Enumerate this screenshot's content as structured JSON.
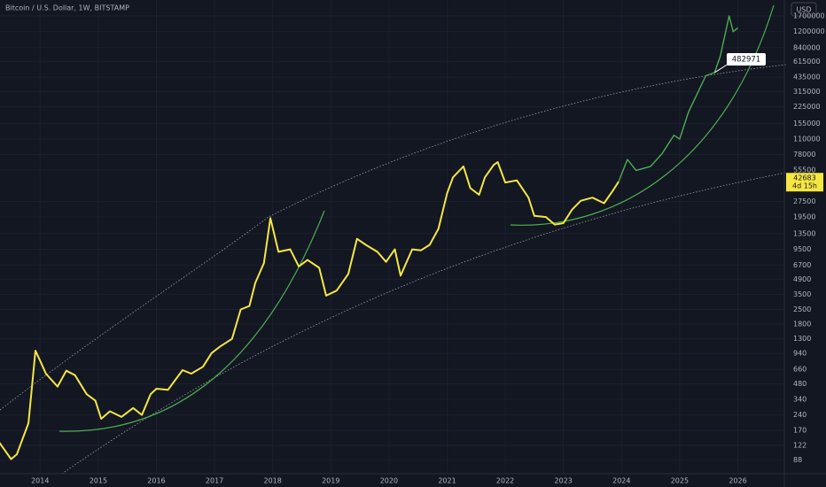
{
  "chart_data": {
    "type": "line",
    "title": "Bitcoin / U.S. Dollar, 1W, BITSTAMP",
    "currency": "USD",
    "log_scale": true,
    "grid": true,
    "xlim": [
      2013.31,
      2026.8
    ],
    "xticks": [
      2014,
      2015,
      2016,
      2017,
      2018,
      2019,
      2020,
      2021,
      2022,
      2023,
      2024,
      2025,
      2026
    ],
    "ylim": [
      65,
      2420000
    ],
    "yticks": [
      88,
      122,
      170,
      240,
      340,
      480,
      660,
      940,
      1300,
      1800,
      2500,
      3500,
      4900,
      6700,
      9500,
      13500,
      19500,
      27500,
      55500,
      78000,
      110000,
      155000,
      225000,
      315000,
      435000,
      615000,
      840000,
      1200000,
      1700000
    ],
    "last_price": 42683,
    "countdown": "4d 15h",
    "target_label": 482971,
    "series": [
      {
        "color": "#f5e642",
        "x": [
          2013.3,
          2013.5,
          2013.6,
          2013.8,
          2013.92,
          2014.0,
          2014.1,
          2014.3,
          2014.45,
          2014.6,
          2014.8,
          2014.95,
          2015.05,
          2015.2,
          2015.4,
          2015.6,
          2015.75,
          2015.9,
          2016.0,
          2016.2,
          2016.45,
          2016.6,
          2016.8,
          2016.95,
          2017.1,
          2017.3,
          2017.45,
          2017.6,
          2017.7,
          2017.85,
          2017.96,
          2018.1,
          2018.3,
          2018.45,
          2018.6,
          2018.8,
          2018.92,
          2019.1,
          2019.3,
          2019.45,
          2019.6,
          2019.8,
          2019.95,
          2020.1,
          2020.2,
          2020.4,
          2020.55,
          2020.7,
          2020.85,
          2021.0,
          2021.1,
          2021.28,
          2021.4,
          2021.55,
          2021.65,
          2021.8,
          2021.87,
          2022.0,
          2022.2,
          2022.4,
          2022.5,
          2022.7,
          2022.85,
          2023.0,
          2023.15,
          2023.3,
          2023.5,
          2023.7,
          2023.85,
          2023.95
        ],
        "values": [
          130,
          90,
          100,
          200,
          1000,
          800,
          600,
          450,
          640,
          580,
          380,
          330,
          220,
          260,
          230,
          280,
          240,
          380,
          430,
          420,
          650,
          600,
          700,
          950,
          1100,
          1300,
          2500,
          2700,
          4500,
          7000,
          19000,
          9000,
          9500,
          6500,
          7500,
          6300,
          3400,
          3800,
          5500,
          12000,
          10500,
          9000,
          7200,
          9500,
          5300,
          9500,
          9300,
          10500,
          15000,
          33000,
          47000,
          60000,
          37000,
          32000,
          47000,
          62000,
          66000,
          42000,
          44000,
          30000,
          20000,
          19500,
          16500,
          17000,
          23000,
          28000,
          30000,
          26500,
          35000,
          42683
        ]
      },
      {
        "color": "#4caf50",
        "x": [
          2023.95,
          2024.1,
          2024.25,
          2024.5,
          2024.7,
          2024.9,
          2025.0,
          2025.15,
          2025.3,
          2025.45,
          2025.6,
          2025.7,
          2025.85,
          2025.92,
          2026.0
        ],
        "values": [
          42683,
          70000,
          55000,
          60000,
          80000,
          120000,
          110000,
          200000,
          300000,
          450000,
          482971,
          700000,
          1700000,
          1200000,
          1300000
        ]
      }
    ]
  }
}
